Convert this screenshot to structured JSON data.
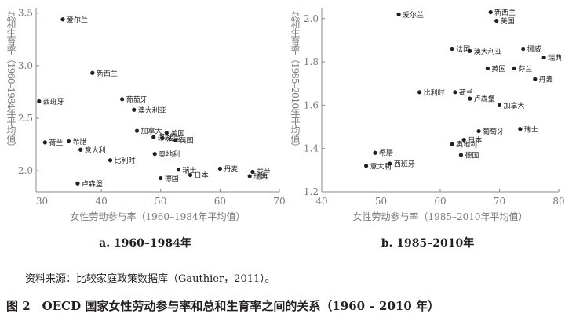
{
  "chart_data": [
    {
      "type": "scatter",
      "title": "a. 1960–1984年",
      "xlabel": "女性劳动参与率（1960–1984年平均值）",
      "ylabel": "总和生育率（1960–1984年平均值）",
      "xlim": [
        29,
        70
      ],
      "ylim": [
        1.8,
        3.55
      ],
      "xticks": [
        30,
        40,
        50,
        60,
        70
      ],
      "yticks": [
        2.0,
        2.5,
        3.0,
        3.5
      ],
      "yticklabels": [
        "2.0",
        "2.5",
        "3.0",
        "3.5"
      ],
      "points": [
        {
          "label": "爱尔兰",
          "x": 33.5,
          "y": 3.44
        },
        {
          "label": "新西兰",
          "x": 38.5,
          "y": 2.93
        },
        {
          "label": "西班牙",
          "x": 29.5,
          "y": 2.66
        },
        {
          "label": "葡萄牙",
          "x": 43.5,
          "y": 2.68
        },
        {
          "label": "澳大利亚",
          "x": 45.5,
          "y": 2.58
        },
        {
          "label": "加拿大",
          "x": 46,
          "y": 2.38
        },
        {
          "label": "美国",
          "x": 51,
          "y": 2.36
        },
        {
          "label": "荷兰",
          "x": 30.5,
          "y": 2.27
        },
        {
          "label": "希腊",
          "x": 34.5,
          "y": 2.28
        },
        {
          "label": "意大利",
          "x": 36.5,
          "y": 2.2
        },
        {
          "label": "挪威",
          "x": 48.8,
          "y": 2.32
        },
        {
          "label": "法国",
          "x": 50.3,
          "y": 2.31
        },
        {
          "label": "英国",
          "x": 52.5,
          "y": 2.29
        },
        {
          "label": "奥地利",
          "x": 49,
          "y": 2.16
        },
        {
          "label": "比利时",
          "x": 41.5,
          "y": 2.1
        },
        {
          "label": "瑞士",
          "x": 53,
          "y": 2.01
        },
        {
          "label": "德国",
          "x": 50,
          "y": 1.93
        },
        {
          "label": "日本",
          "x": 55,
          "y": 1.96
        },
        {
          "label": "丹麦",
          "x": 60,
          "y": 2.02
        },
        {
          "label": "芬兰",
          "x": 65.5,
          "y": 1.99
        },
        {
          "label": "瑞典",
          "x": 65,
          "y": 1.95
        },
        {
          "label": "卢森堡",
          "x": 36,
          "y": 1.88
        }
      ]
    },
    {
      "type": "scatter",
      "title": "b. 1985–2010年",
      "xlabel": "女性劳动参与率（1985–2010年平均值）",
      "ylabel": "总和生育率（1985–2010年平均值）",
      "xlim": [
        40,
        80
      ],
      "ylim": [
        1.2,
        2.05
      ],
      "xticks": [
        40,
        50,
        60,
        70,
        80
      ],
      "yticks": [
        1.2,
        1.4,
        1.6,
        1.8,
        2.0
      ],
      "yticklabels": [
        "1.2",
        "1.4",
        "1.6",
        "1.8",
        "2.0"
      ],
      "points": [
        {
          "label": "爱尔兰",
          "x": 53,
          "y": 2.02
        },
        {
          "label": "新西兰",
          "x": 68.5,
          "y": 2.03
        },
        {
          "label": "美国",
          "x": 69.5,
          "y": 1.99
        },
        {
          "label": "法国",
          "x": 62,
          "y": 1.86
        },
        {
          "label": "澳大利亚",
          "x": 65,
          "y": 1.85
        },
        {
          "label": "挪威",
          "x": 74,
          "y": 1.86
        },
        {
          "label": "瑞典",
          "x": 77.5,
          "y": 1.82
        },
        {
          "label": "英国",
          "x": 68,
          "y": 1.77
        },
        {
          "label": "芬兰",
          "x": 72.5,
          "y": 1.77
        },
        {
          "label": "丹麦",
          "x": 76,
          "y": 1.72
        },
        {
          "label": "比利时",
          "x": 56.5,
          "y": 1.66
        },
        {
          "label": "荷兰",
          "x": 62.5,
          "y": 1.66
        },
        {
          "label": "卢森堡",
          "x": 65,
          "y": 1.63
        },
        {
          "label": "加拿大",
          "x": 70,
          "y": 1.6
        },
        {
          "label": "瑞士",
          "x": 73.5,
          "y": 1.49
        },
        {
          "label": "葡萄牙",
          "x": 66.5,
          "y": 1.48
        },
        {
          "label": "日本",
          "x": 64,
          "y": 1.44
        },
        {
          "label": "奥地利",
          "x": 62,
          "y": 1.42
        },
        {
          "label": "希腊",
          "x": 49,
          "y": 1.38
        },
        {
          "label": "德国",
          "x": 63.5,
          "y": 1.37
        },
        {
          "label": "西班牙",
          "x": 51.5,
          "y": 1.33
        },
        {
          "label": "意大利",
          "x": 47.5,
          "y": 1.32
        }
      ]
    }
  ],
  "source_note": "资料来源：比较家庭政策数据库（Gauthier，2011）。",
  "figure_caption": "图 2　OECD 国家女性劳动参与率和总和生育率之间的关系（1960 – 2010 年）",
  "colors": {
    "axis_text": "#7a7a7a",
    "marker": "#231f20",
    "text": "#231f20",
    "axis_line": "#8a8a8a"
  }
}
